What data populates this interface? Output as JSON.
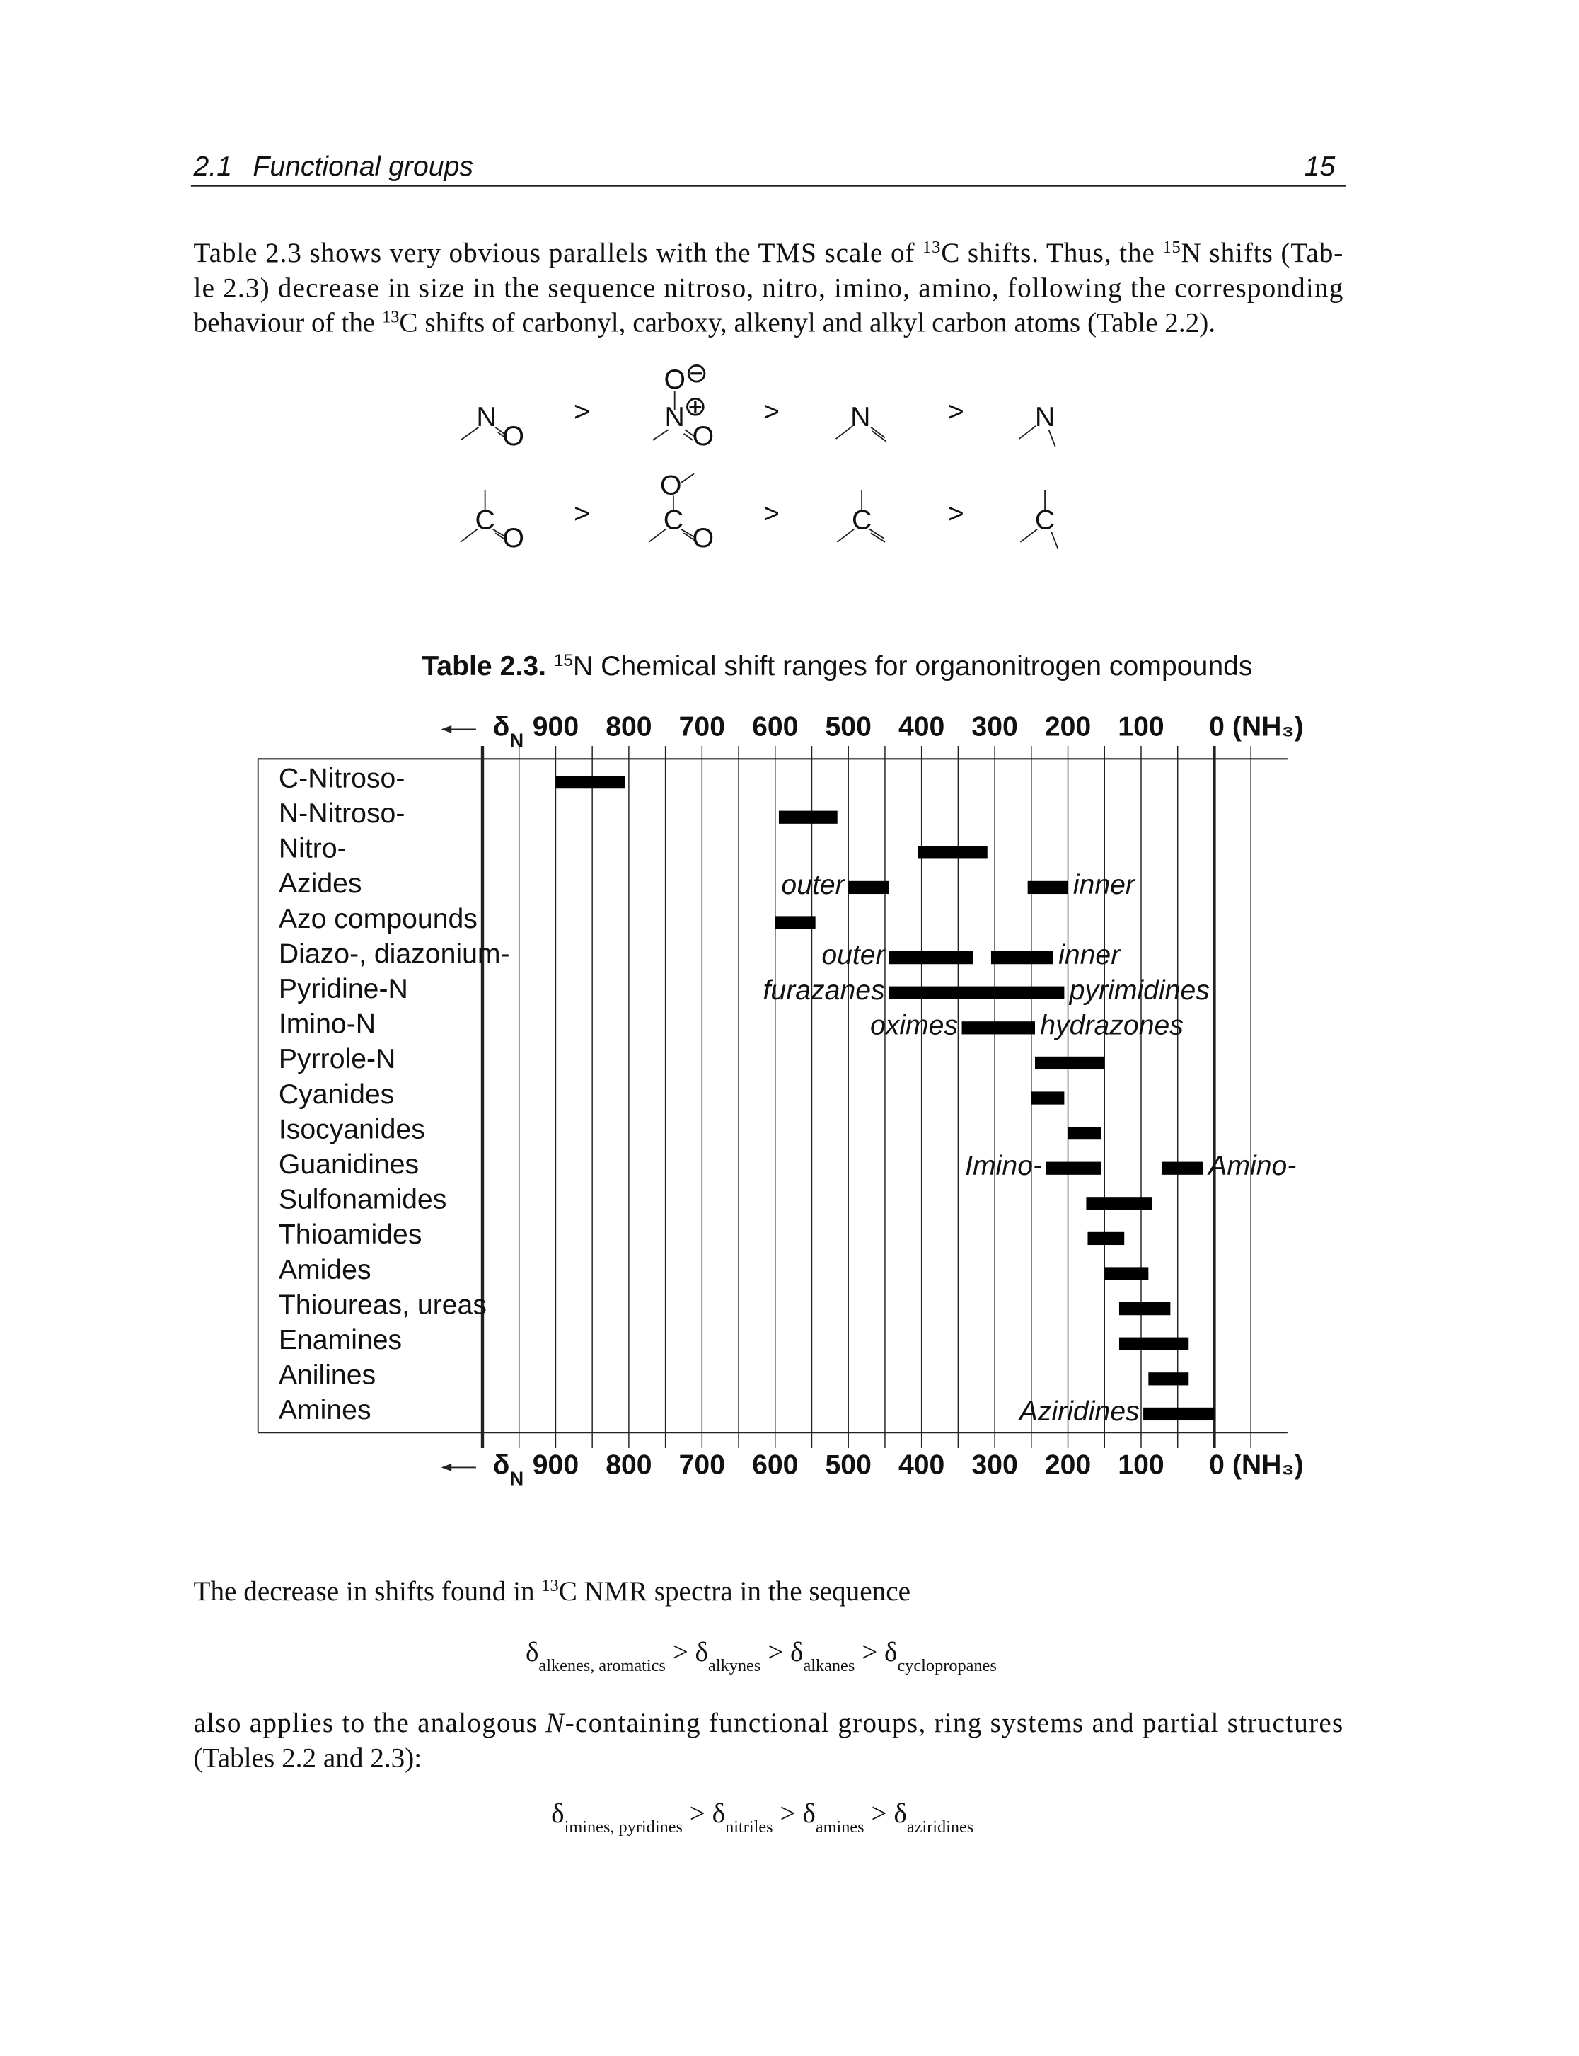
{
  "header": {
    "section": "2.1",
    "title": "Functional groups",
    "page": "15"
  },
  "text_blocks": [
    [
      [
        "Table 2.3 shows very obvious parallels with the TMS scale of ",
        {
          "sup": "13"
        },
        "C shifts. Thus, the ",
        {
          "sup": "15"
        },
        "N shifts (Tab-"
      ],
      [
        "le 2.3) decrease in size in the sequence nitroso, nitro, imino, amino, following the corresponding"
      ],
      [
        "behaviour of the ",
        {
          "sup": "13"
        },
        "C shifts of carbonyl, carboxy, alkenyl and alkyl carbon atoms (Table 2.2)."
      ]
    ],
    [
      [
        "The decrease in shifts found in ",
        {
          "sup": "13"
        },
        "C NMR spectra in the sequence"
      ]
    ],
    [
      [
        "δ",
        {
          "sub": "alkenes, aromatics"
        },
        " > δ",
        {
          "sub": "alkynes"
        },
        " > δ",
        {
          "sub": "alkanes"
        },
        " > δ",
        {
          "sub": "cyclopropanes"
        }
      ]
    ],
    [
      [
        "also applies to the analogous ",
        {
          "i": "N"
        },
        "-containing functional groups, ring systems and partial structures"
      ],
      [
        "(Tables 2.2 and 2.3):"
      ]
    ],
    [
      [
        "δ",
        {
          "sub": "imines, pyridines"
        },
        " > δ",
        {
          "sub": "nitriles"
        },
        " > δ",
        {
          "sub": "amines"
        },
        " > δ",
        {
          "sub": "aziridines"
        }
      ]
    ]
  ],
  "structures": {
    "nitrogen": [
      [
        "N",
        "O"
      ],
      [
        "O",
        "N",
        "O"
      ],
      [
        "N"
      ],
      [
        "N"
      ]
    ],
    "carbon": [
      [
        "C",
        "O"
      ],
      [
        "O",
        "C",
        "O"
      ],
      [
        "C"
      ],
      [
        "C"
      ]
    ],
    "charges": [
      "⊖",
      "⊕"
    ],
    "separator": ">"
  },
  "caption": {
    "label": "Table 2.3.",
    "text": [
      {
        "sup": "15"
      },
      "N Chemical shift ranges for organonitrogen compounds"
    ]
  },
  "chart_data": {
    "type": "range-bar",
    "axis_symbol": "δ",
    "axis_subscript": "N",
    "xlim": [
      1000,
      -100
    ],
    "xticks": [
      900,
      800,
      700,
      600,
      500,
      400,
      300,
      200,
      100,
      {
        "value": 0,
        "label": "0 (NH₃)"
      }
    ],
    "xgrid": [
      950,
      850,
      750,
      650,
      550,
      450,
      350,
      250,
      150,
      50,
      -50
    ],
    "reference": 0,
    "color": "#000000",
    "rows": [
      {
        "name": "C-Nitroso-",
        "ranges": [
          {
            "range": [
              805,
              900
            ]
          }
        ]
      },
      {
        "name": "N-Nitroso-",
        "ranges": [
          {
            "range": [
              515,
              595
            ]
          }
        ]
      },
      {
        "name": "Nitro-",
        "ranges": [
          {
            "range": [
              310,
              405
            ]
          }
        ]
      },
      {
        "name": "Azides",
        "ranges": [
          {
            "range": [
              445,
              500
            ],
            "label": "outer",
            "label_side": "left"
          },
          {
            "range": [
              200,
              255
            ],
            "label": "inner",
            "label_side": "right"
          }
        ]
      },
      {
        "name": "Azo compounds",
        "ranges": [
          {
            "range": [
              545,
              600
            ]
          }
        ]
      },
      {
        "name": "Diazo-, diazonium-",
        "ranges": [
          {
            "range": [
              330,
              445
            ],
            "label": "outer",
            "label_side": "left"
          },
          {
            "range": [
              220,
              305
            ],
            "label": "inner",
            "label_side": "right"
          }
        ]
      },
      {
        "name": "Pyridine-N",
        "ranges": [
          {
            "range": [
              205,
              445
            ],
            "label": "furazanes",
            "label_side": "left"
          },
          {
            "label": "pyrimidines",
            "label_side": "right",
            "range": [
              205,
              205
            ]
          }
        ]
      },
      {
        "name": "Imino-N",
        "ranges": [
          {
            "range": [
              245,
              345
            ],
            "label": "oximes",
            "label_side": "left"
          },
          {
            "label": "hydrazones",
            "label_side": "right",
            "range": [
              245,
              245
            ]
          }
        ]
      },
      {
        "name": "Pyrrole-N",
        "ranges": [
          {
            "range": [
              150,
              245
            ]
          }
        ]
      },
      {
        "name": "Cyanides",
        "ranges": [
          {
            "range": [
              205,
              250
            ]
          }
        ]
      },
      {
        "name": "Isocyanides",
        "ranges": [
          {
            "range": [
              155,
              200
            ]
          }
        ]
      },
      {
        "name": "Guanidines",
        "ranges": [
          {
            "range": [
              155,
              230
            ],
            "label": "Imino-",
            "label_side": "left"
          },
          {
            "range": [
              15,
              72
            ],
            "label": "Amino-",
            "label_side": "right"
          }
        ]
      },
      {
        "name": "Sulfonamides",
        "ranges": [
          {
            "range": [
              85,
              175
            ]
          }
        ]
      },
      {
        "name": "Thioamides",
        "ranges": [
          {
            "range": [
              123,
              173
            ]
          }
        ]
      },
      {
        "name": "Amides",
        "ranges": [
          {
            "range": [
              90,
              150
            ]
          }
        ]
      },
      {
        "name": "Thioureas, ureas",
        "ranges": [
          {
            "range": [
              60,
              130
            ]
          }
        ]
      },
      {
        "name": "Enamines",
        "ranges": [
          {
            "range": [
              35,
              130
            ]
          }
        ]
      },
      {
        "name": "Anilines",
        "ranges": [
          {
            "range": [
              35,
              90
            ]
          }
        ]
      },
      {
        "name": "Amines",
        "ranges": [
          {
            "range": [
              0,
              97
            ],
            "label": "Aziridines",
            "label_side": "left"
          }
        ]
      }
    ]
  }
}
